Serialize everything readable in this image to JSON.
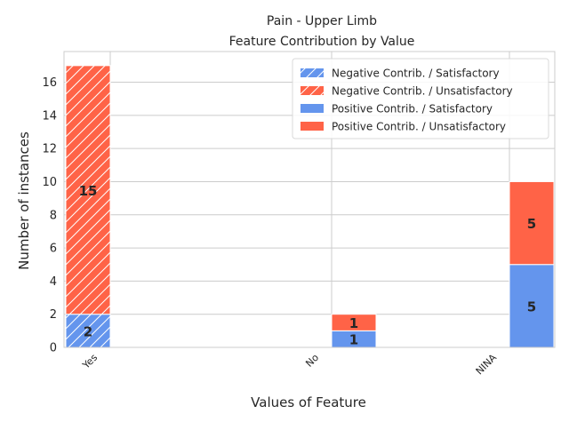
{
  "chart_data": {
    "type": "bar",
    "stacked": true,
    "title_line1": "Pain - Upper Limb",
    "title_line2": "Feature Contribution by Value",
    "xlabel": "Values of Feature",
    "ylabel": "Number of instances",
    "categories": [
      "Yes",
      "No",
      "NINA"
    ],
    "ylim": [
      0,
      17.85
    ],
    "yticks": [
      0,
      2,
      4,
      6,
      8,
      10,
      12,
      14,
      16
    ],
    "grid": true,
    "legend_position": "top-right",
    "series": [
      {
        "name": "Negative Contrib. / Satisfactory",
        "color": "#6495ED",
        "hatch": true,
        "offset": -1,
        "values": [
          2,
          0,
          0
        ]
      },
      {
        "name": "Negative Contrib. / Unsatisfactory",
        "color": "#FF6347",
        "hatch": true,
        "offset": -1,
        "values": [
          15,
          0,
          0
        ]
      },
      {
        "name": "Positive Contrib. / Satisfactory",
        "color": "#6495ED",
        "hatch": false,
        "offset": 0,
        "values": [
          0,
          1,
          5
        ]
      },
      {
        "name": "Positive Contrib. / Unsatisfactory",
        "color": "#FF6347",
        "hatch": false,
        "offset": 0,
        "values": [
          0,
          1,
          5
        ]
      }
    ],
    "stacks": [
      {
        "group": "negative",
        "series": [
          0,
          1
        ]
      },
      {
        "group": "positive",
        "series": [
          2,
          3
        ]
      }
    ]
  }
}
